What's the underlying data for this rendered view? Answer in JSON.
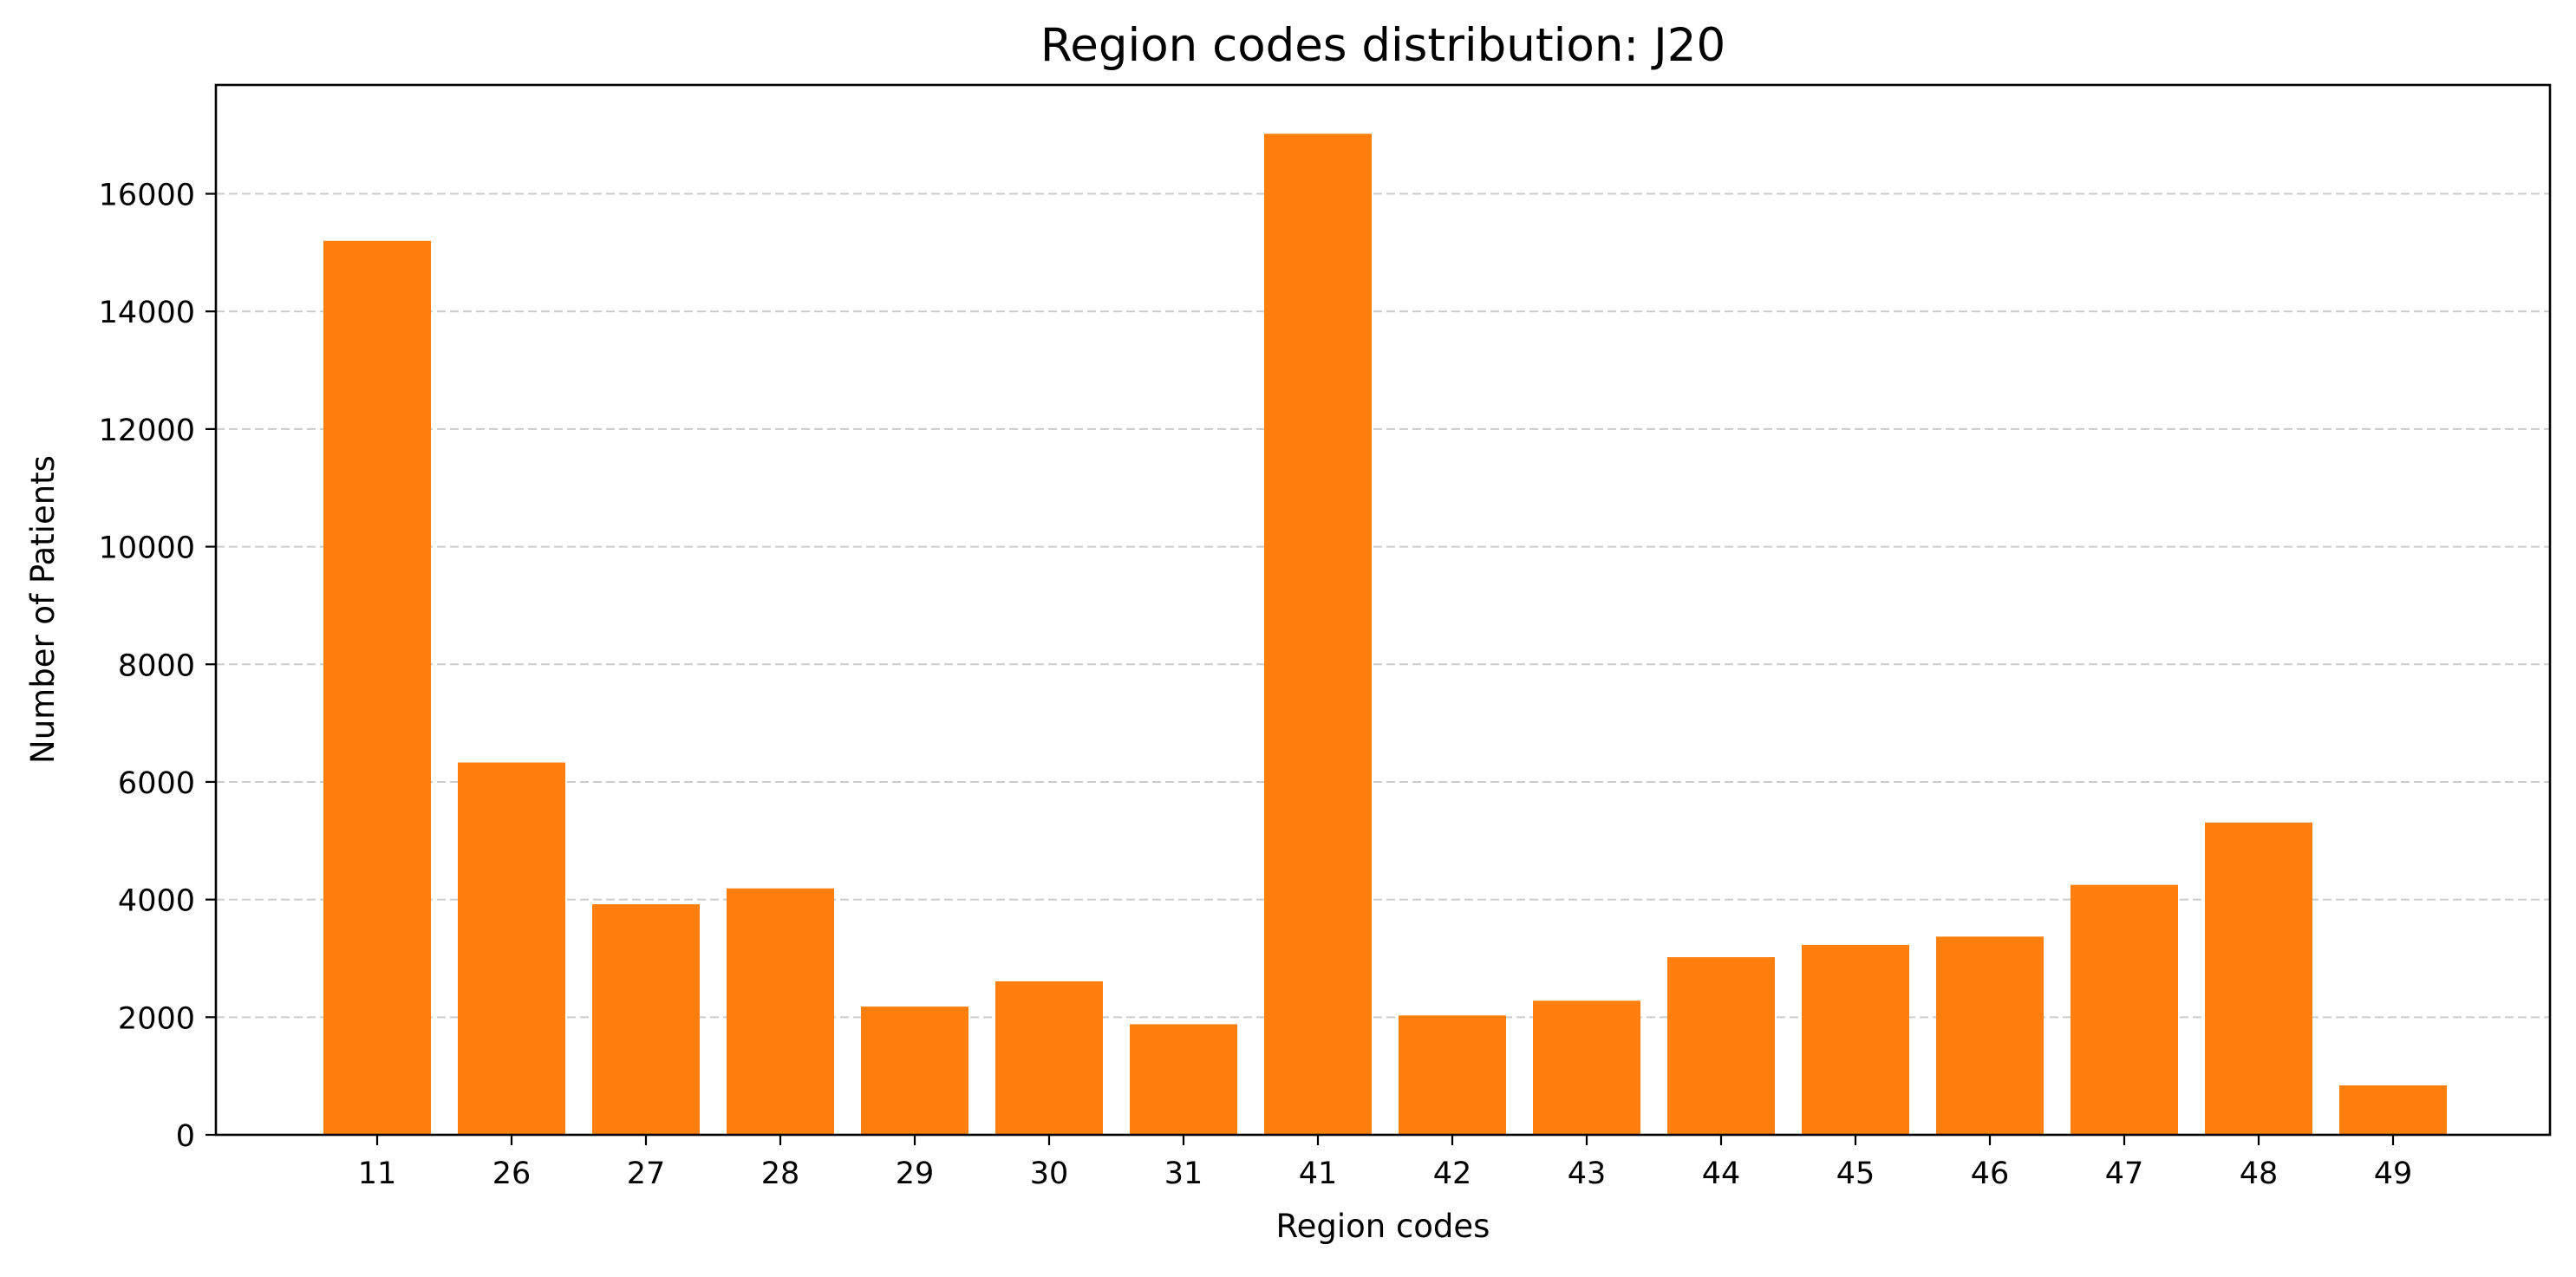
{
  "chart_data": {
    "type": "bar",
    "title": "Region codes distribution: J20",
    "xlabel": "Region codes",
    "ylabel": "Number of Patients",
    "categories": [
      "11",
      "26",
      "27",
      "28",
      "29",
      "30",
      "31",
      "41",
      "42",
      "43",
      "44",
      "45",
      "46",
      "47",
      "48",
      "49"
    ],
    "values": [
      15200,
      6330,
      3920,
      4190,
      2180,
      2610,
      1880,
      17020,
      2030,
      2280,
      3020,
      3230,
      3370,
      4250,
      5310,
      840
    ],
    "ylim": [
      0,
      17850
    ],
    "yticks": [
      0,
      2000,
      4000,
      6000,
      8000,
      10000,
      12000,
      14000,
      16000
    ],
    "grid": "horizontal dashed",
    "legend": "none",
    "bar_color": "#ff7f0e"
  }
}
